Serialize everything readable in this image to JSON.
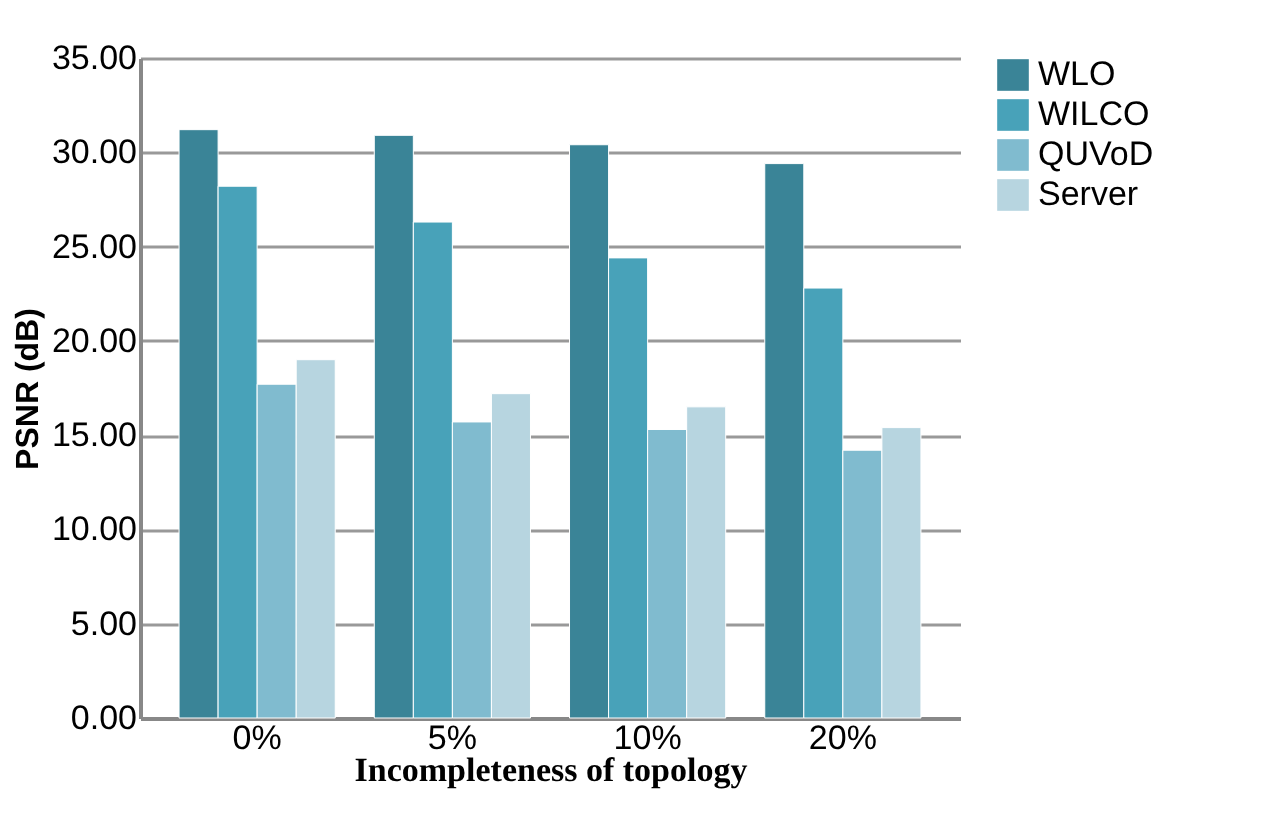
{
  "chart_data": {
    "type": "bar",
    "xlabel": "Incompleteness of topology",
    "ylabel": "PSNR (dB)",
    "categories": [
      "0%",
      "5%",
      "10%",
      "20%"
    ],
    "series": [
      {
        "name": "WLO",
        "color": "#3a8497",
        "values": [
          31.2,
          30.9,
          30.4,
          29.4
        ]
      },
      {
        "name": "WILCO",
        "color": "#48a2b9",
        "values": [
          28.2,
          26.3,
          24.4,
          22.8
        ]
      },
      {
        "name": "QUVoD",
        "color": "#80bbcf",
        "values": [
          17.7,
          15.7,
          15.3,
          14.2
        ]
      },
      {
        "name": "Server",
        "color": "#b7d5e0",
        "values": [
          19.0,
          17.2,
          16.5,
          15.4
        ]
      }
    ],
    "ylim": [
      0,
      35
    ],
    "yticks": [
      {
        "value": 0,
        "label": "0.00"
      },
      {
        "value": 5,
        "label": "5.00"
      },
      {
        "value": 10,
        "label": "10.00"
      },
      {
        "value": 15,
        "label": "15.00"
      },
      {
        "value": 20,
        "label": "20.00"
      },
      {
        "value": 25,
        "label": "25.00"
      },
      {
        "value": 30,
        "label": "30.00"
      },
      {
        "value": 35,
        "label": "35.00"
      }
    ],
    "grid": "y",
    "legend": "right"
  }
}
